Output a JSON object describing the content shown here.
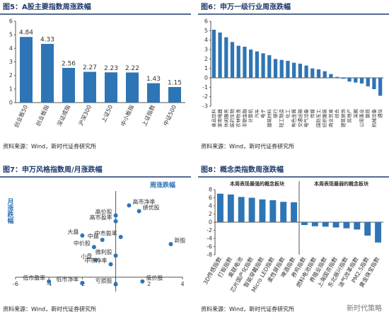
{
  "watermark": "新时代策略",
  "chart_data": [
    {
      "type": "bar",
      "title": "图5：A股主要指数周涨跌幅",
      "source": "资料来源：Wind，新时代证券研究所",
      "categories": [
        "创业板50",
        "创业板指",
        "深证成指",
        "沪深300",
        "上证50",
        "中小板指",
        "上证指数",
        "中证500"
      ],
      "values": [
        4.84,
        4.33,
        2.56,
        2.27,
        2.23,
        2.22,
        1.43,
        1.15
      ],
      "show_value_labels": true,
      "color": "#2e75b6",
      "ylim": [
        0,
        6
      ],
      "yticks": [
        0,
        1,
        2,
        3,
        4,
        5,
        6
      ]
    },
    {
      "type": "bar",
      "title": "图6：申万一级行业周涨跌幅",
      "source": "资料来源：Wind，新时代证券研究所",
      "categories": [
        "食品饮料",
        "家用电器",
        "休闲服务",
        "医药生物",
        "农林牧渔",
        "非银金融",
        "计算机",
        "汽车",
        "电子",
        "建筑材料",
        "银行",
        "轻工制造",
        "化工",
        "有色金属",
        "交通运输",
        "电气设备",
        "传媒",
        "国防军工",
        "纺织服装",
        "商业贸易",
        "综合",
        "建筑装饰",
        "房地产",
        "采掘",
        "公用事业",
        "钢铁",
        "机械设备",
        "通信"
      ],
      "values": [
        5.1,
        4.8,
        4.3,
        3.8,
        3.4,
        3.3,
        3.0,
        2.8,
        2.6,
        2.4,
        2.0,
        1.9,
        1.8,
        1.6,
        1.5,
        1.3,
        1.0,
        0.9,
        0.7,
        0.4,
        0.1,
        -0.1,
        -0.4,
        -0.5,
        -0.6,
        -0.9,
        -1.2,
        -1.9
      ],
      "color": "#2e75b6",
      "ylim": [
        -3,
        6
      ],
      "yticks": [
        -3,
        -2,
        -1,
        0,
        1,
        2,
        3,
        4,
        5,
        6
      ]
    },
    {
      "type": "scatter",
      "title": "图7：申万风格指数周/月涨跌幅",
      "source": "资料来源：Wind，新时代证券研究所",
      "x_label": "周涨跌幅",
      "y_label": "月涨跌幅",
      "point_labels": [
        "高市净率",
        "绩优股",
        "高价股",
        "高市盈率",
        "大盘",
        "中盘",
        "中市盈率",
        "新股",
        "中价股",
        "微利股",
        "小盘",
        "中市净率",
        "低市盈率",
        "低市净率",
        "亏损股",
        "低价股"
      ],
      "x": [
        0.8,
        1.4,
        0.0,
        0.0,
        -2.0,
        -0.8,
        0.3,
        3.3,
        -1.3,
        0.0,
        -1.2,
        -0.3,
        -4.0,
        -2.0,
        0.0,
        1.6
      ],
      "y": [
        5.0,
        4.6,
        4.3,
        3.9,
        2.9,
        2.6,
        2.8,
        2.3,
        2.1,
        1.5,
        1.2,
        0.9,
        -0.3,
        -0.4,
        -0.5,
        -0.3
      ],
      "color": "#2e75b6",
      "xlim": [
        -6,
        4
      ],
      "xticks": [
        -6,
        -4,
        -2,
        0,
        2,
        4
      ],
      "ylim": [
        -1,
        6
      ]
    },
    {
      "type": "bar",
      "title": "图8：概念类指数周涨跌幅",
      "source": "资料来源：Wind，新时代证券研究所",
      "annotations": [
        "本周表现最强的概念板块",
        "本周表现最弱的概念板块"
      ],
      "categories": [
        "3D传感指数",
        "打板指数",
        "乘联电池",
        "芯片国产化指数",
        "智能穿戴指数",
        "Micro LED指数",
        "柔性屏指数",
        "啤酒指数",
        "养鸡指数",
        "燃料电池指数",
        "养殖业指数",
        "上海国资指数",
        "东北振兴指数",
        "油气改革指数",
        "PM2.5指数",
        "黄金珠宝指数"
      ],
      "values": [
        7.0,
        6.8,
        6.2,
        6.0,
        5.6,
        5.4,
        5.0,
        4.9,
        -0.7,
        -1.0,
        -1.1,
        -1.3,
        -1.5,
        -1.8,
        -3.3,
        -5.0
      ],
      "color": "#2e75b6",
      "ylim": [
        -8,
        8
      ],
      "yticks": [
        -8,
        -6,
        -4,
        -2,
        0,
        2,
        4,
        6,
        8
      ]
    }
  ]
}
